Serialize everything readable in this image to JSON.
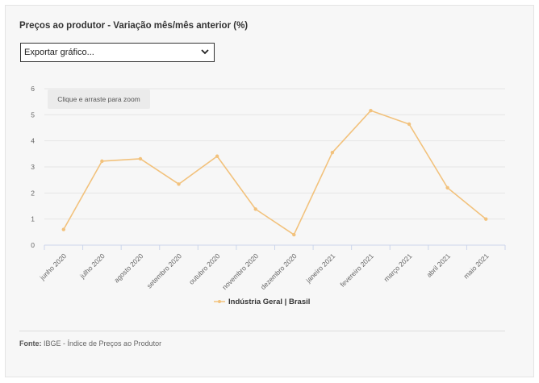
{
  "title": "Preços ao produtor - Variação mês/mês anterior (%)",
  "export_select": {
    "selected": "Exportar gráfico..."
  },
  "zoom_hint": "Clique e arraste para zoom",
  "source": {
    "label": "Fonte:",
    "text": "IBGE - Índice de Preços ao Produtor"
  },
  "colors": {
    "series": "#f2c27d",
    "grid": "#e6e6e6",
    "axis": "#ccd6eb",
    "tick_text": "#666666"
  },
  "chart_data": {
    "type": "line",
    "categories": [
      "junho 2020",
      "julho 2020",
      "agosto 2020",
      "setembro 2020",
      "outubro 2020",
      "novembro 2020",
      "dezembro 2020",
      "janeiro 2021",
      "fevereiro 2021",
      "março 2021",
      "abril 2021",
      "maio 2021"
    ],
    "series": [
      {
        "name": "Indústria Geral | Brasil",
        "values": [
          0.6,
          3.22,
          3.31,
          2.34,
          3.41,
          1.38,
          0.4,
          3.55,
          5.16,
          4.64,
          2.2,
          1.0
        ]
      }
    ],
    "yticks": [
      0,
      1,
      2,
      3,
      4,
      5,
      6
    ],
    "ylim": [
      0,
      6
    ],
    "grid": true,
    "legend": "bottom-center"
  }
}
